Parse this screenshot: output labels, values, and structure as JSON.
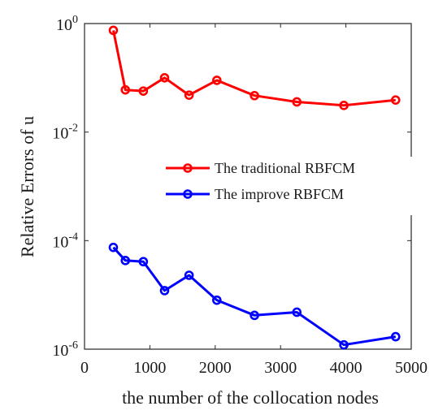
{
  "chart_data": {
    "type": "line",
    "title": "",
    "xlabel": "the number of the collocation nodes",
    "ylabel": "Relative Errors of u",
    "xlim": [
      0,
      5000
    ],
    "ylim": [
      1e-06,
      1
    ],
    "yscale": "log",
    "xticks": [
      "0",
      "1000",
      "2000",
      "3000",
      "4000",
      "5000"
    ],
    "yticks": [
      {
        "base": "10",
        "exp": "-6"
      },
      {
        "base": "10",
        "exp": "-4"
      },
      {
        "base": "10",
        "exp": "-2"
      },
      {
        "base": "10",
        "exp": "0"
      }
    ],
    "grid": false,
    "legend_position": "right",
    "series": [
      {
        "name": "The traditional RBFCM",
        "color": "#ff0000",
        "marker": "circle",
        "x": [
          441,
          625,
          900,
          1225,
          1600,
          2025,
          2601,
          3249,
          3969,
          4761
        ],
        "y": [
          0.75,
          0.06,
          0.057,
          0.1,
          0.048,
          0.09,
          0.047,
          0.036,
          0.031,
          0.039
        ]
      },
      {
        "name": "The improve RBFCM",
        "color": "#0000ff",
        "marker": "circle",
        "x": [
          441,
          625,
          900,
          1225,
          1600,
          2025,
          2601,
          3249,
          3969,
          4761
        ],
        "y": [
          7.5e-05,
          4.3e-05,
          4.1e-05,
          1.2e-05,
          2.3e-05,
          8e-06,
          4.2e-06,
          4.8e-06,
          1.2e-06,
          1.7e-06
        ]
      }
    ]
  }
}
